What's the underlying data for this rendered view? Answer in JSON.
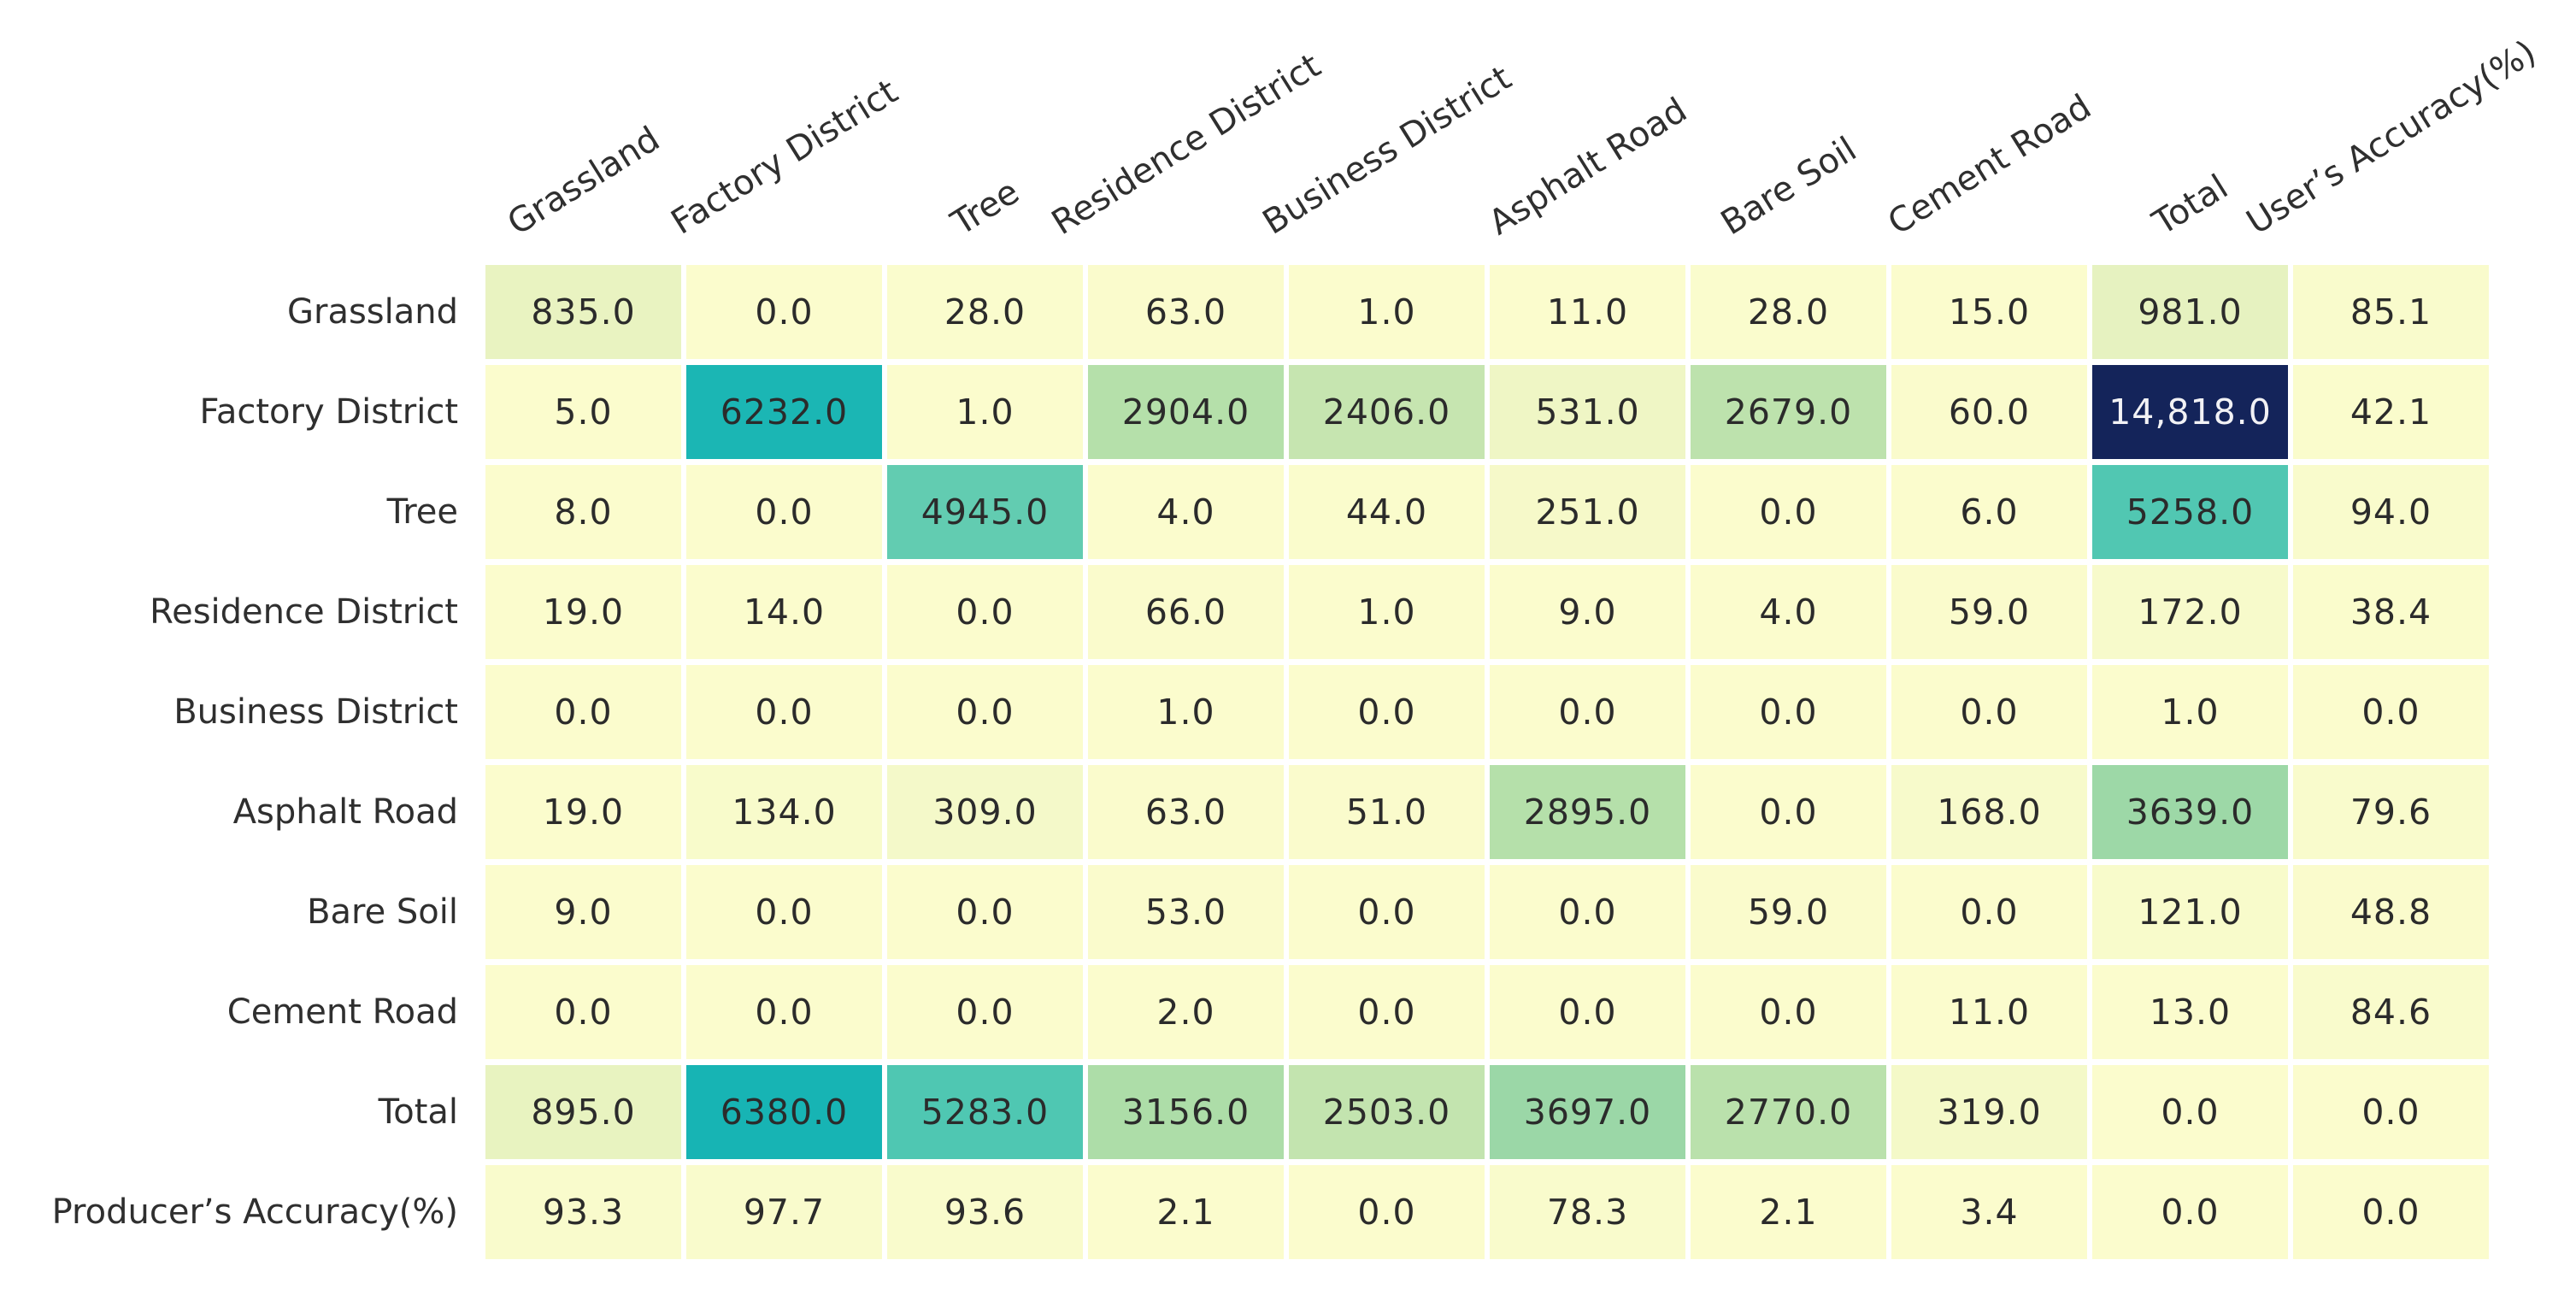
{
  "chart_data": {
    "type": "heatmap",
    "description": "Confusion matrix of land-cover classification with totals and accuracy",
    "columns": [
      "Grassland",
      "Factory District",
      "Tree",
      "Residence District",
      "Business District",
      "Asphalt Road",
      "Bare Soil",
      "Cement Road",
      "Total",
      "User’s Accuracy(%)"
    ],
    "rows": [
      "Grassland",
      "Factory District",
      "Tree",
      "Residence District",
      "Business District",
      "Asphalt Road",
      "Bare Soil",
      "Cement Road",
      "Total",
      "Producer’s Accuracy(%)"
    ],
    "cells": [
      [
        "835.0",
        "0.0",
        "28.0",
        "63.0",
        "1.0",
        "11.0",
        "28.0",
        "15.0",
        "981.0",
        "85.1"
      ],
      [
        "5.0",
        "6232.0",
        "1.0",
        "2904.0",
        "2406.0",
        "531.0",
        "2679.0",
        "60.0",
        "14,818.0",
        "42.1"
      ],
      [
        "8.0",
        "0.0",
        "4945.0",
        "4.0",
        "44.0",
        "251.0",
        "0.0",
        "6.0",
        "5258.0",
        "94.0"
      ],
      [
        "19.0",
        "14.0",
        "0.0",
        "66.0",
        "1.0",
        "9.0",
        "4.0",
        "59.0",
        "172.0",
        "38.4"
      ],
      [
        "0.0",
        "0.0",
        "0.0",
        "1.0",
        "0.0",
        "0.0",
        "0.0",
        "0.0",
        "1.0",
        "0.0"
      ],
      [
        "19.0",
        "134.0",
        "309.0",
        "63.0",
        "51.0",
        "2895.0",
        "0.0",
        "168.0",
        "3639.0",
        "79.6"
      ],
      [
        "9.0",
        "0.0",
        "0.0",
        "53.0",
        "0.0",
        "0.0",
        "59.0",
        "0.0",
        "121.0",
        "48.8"
      ],
      [
        "0.0",
        "0.0",
        "0.0",
        "2.0",
        "0.0",
        "0.0",
        "0.0",
        "11.0",
        "13.0",
        "84.6"
      ],
      [
        "895.0",
        "6380.0",
        "5283.0",
        "3156.0",
        "2503.0",
        "3697.0",
        "2770.0",
        "319.0",
        "0.0",
        "0.0"
      ],
      [
        "93.3",
        "97.7",
        "93.6",
        "2.1",
        "0.0",
        "78.3",
        "2.1",
        "3.4",
        "0.0",
        "0.0"
      ]
    ],
    "vmax": 14818,
    "colormap_stops": [
      [
        0.0,
        "#fbfccd"
      ],
      [
        0.056,
        "#e9f3c1"
      ],
      [
        0.11,
        "#d9eeba"
      ],
      [
        0.165,
        "#c5e5b0"
      ],
      [
        0.2,
        "#b3dfa9"
      ],
      [
        0.25,
        "#9bd7a7"
      ],
      [
        0.3,
        "#7ed0ad"
      ],
      [
        0.34,
        "#5dcbb2"
      ],
      [
        0.425,
        "#17b5b4"
      ],
      [
        0.6,
        "#1d91c0"
      ],
      [
        0.75,
        "#225ea8"
      ],
      [
        0.875,
        "#253494"
      ],
      [
        1.0,
        "#14245a"
      ]
    ],
    "colors": {
      "text": "#2b2b2b",
      "text_on_dark": "#f2f2f5",
      "grid_background": "#ffffff"
    },
    "legend": "none",
    "grid": "white gaps between cells",
    "header_rotation_deg": 32
  }
}
